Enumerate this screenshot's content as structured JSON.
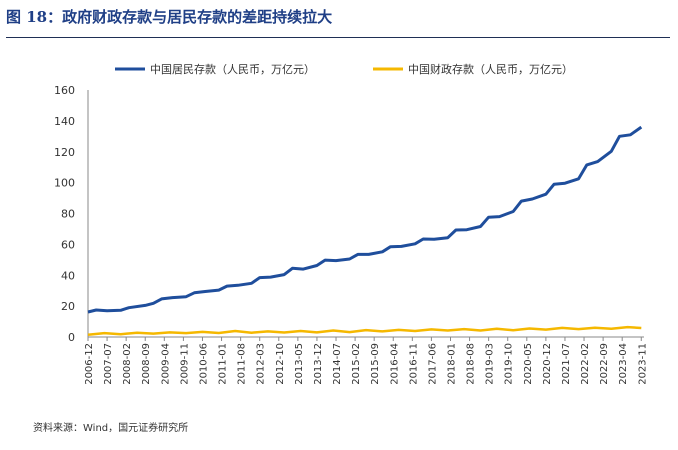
{
  "figure_title": "图 18：政府财政存款与居民存款的差距持续拉大",
  "source": "资料来源：Wind，国元证券研究所",
  "colors": {
    "title": "#1f3f86",
    "household": "#1f4e9c",
    "fiscal": "#f5b800"
  },
  "chart_data": {
    "type": "line",
    "title": "图 18：政府财政存款与居民存款的差距持续拉大",
    "xlabel": "",
    "ylabel": "",
    "ylim": [
      0,
      160
    ],
    "yticks": [
      0,
      20,
      40,
      60,
      80,
      100,
      120,
      140,
      160
    ],
    "grid": false,
    "legend_position": "top",
    "x_tick_labels": [
      "2006-12",
      "2007-07",
      "2008-02",
      "2008-09",
      "2009-04",
      "2009-11",
      "2010-06",
      "2011-01",
      "2011-08",
      "2012-03",
      "2012-10",
      "2013-05",
      "2013-12",
      "2014-07",
      "2015-02",
      "2015-09",
      "2016-04",
      "2016-11",
      "2017-06",
      "2018-01",
      "2018-08",
      "2019-03",
      "2019-10",
      "2020-05",
      "2020-12",
      "2021-07",
      "2022-02",
      "2022-09",
      "2023-04",
      "2023-11"
    ],
    "x_range": [
      "2006-12",
      "2023-12"
    ],
    "series": [
      {
        "name": "中国居民存款（人民币，万亿元）",
        "color": "#1f4e9c",
        "points": [
          [
            "2006-12",
            16.2
          ],
          [
            "2007-03",
            17.5
          ],
          [
            "2007-07",
            17.0
          ],
          [
            "2007-12",
            17.3
          ],
          [
            "2008-03",
            19.0
          ],
          [
            "2008-09",
            20.5
          ],
          [
            "2008-12",
            21.8
          ],
          [
            "2009-03",
            24.7
          ],
          [
            "2009-07",
            25.5
          ],
          [
            "2009-12",
            26.1
          ],
          [
            "2010-03",
            28.6
          ],
          [
            "2010-07",
            29.5
          ],
          [
            "2010-12",
            30.4
          ],
          [
            "2011-03",
            33.0
          ],
          [
            "2011-07",
            33.5
          ],
          [
            "2011-12",
            34.8
          ],
          [
            "2012-03",
            38.5
          ],
          [
            "2012-07",
            38.8
          ],
          [
            "2012-12",
            40.4
          ],
          [
            "2013-03",
            44.5
          ],
          [
            "2013-07",
            44.0
          ],
          [
            "2013-12",
            46.3
          ],
          [
            "2014-03",
            49.8
          ],
          [
            "2014-07",
            49.5
          ],
          [
            "2014-12",
            50.5
          ],
          [
            "2015-03",
            53.5
          ],
          [
            "2015-07",
            53.5
          ],
          [
            "2015-12",
            55.2
          ],
          [
            "2016-03",
            58.5
          ],
          [
            "2016-07",
            58.7
          ],
          [
            "2016-12",
            60.4
          ],
          [
            "2017-03",
            63.5
          ],
          [
            "2017-07",
            63.3
          ],
          [
            "2017-12",
            64.3
          ],
          [
            "2018-03",
            69.3
          ],
          [
            "2018-07",
            69.5
          ],
          [
            "2018-12",
            71.6
          ],
          [
            "2019-03",
            77.6
          ],
          [
            "2019-07",
            78.0
          ],
          [
            "2019-12",
            81.3
          ],
          [
            "2020-03",
            88.0
          ],
          [
            "2020-07",
            89.4
          ],
          [
            "2020-12",
            92.5
          ],
          [
            "2021-03",
            99.0
          ],
          [
            "2021-07",
            99.6
          ],
          [
            "2021-12",
            102.5
          ],
          [
            "2022-03",
            111.5
          ],
          [
            "2022-07",
            113.6
          ],
          [
            "2022-12",
            120.3
          ],
          [
            "2023-03",
            130.0
          ],
          [
            "2023-07",
            131.0
          ],
          [
            "2023-11",
            136.0
          ]
        ]
      },
      {
        "name": "中国财政存款（人民币，万亿元）",
        "color": "#f5b800",
        "points": [
          [
            "2006-12",
            1.4
          ],
          [
            "2007-06",
            2.5
          ],
          [
            "2007-12",
            1.8
          ],
          [
            "2008-06",
            2.8
          ],
          [
            "2008-12",
            2.2
          ],
          [
            "2009-06",
            3.0
          ],
          [
            "2009-12",
            2.5
          ],
          [
            "2010-06",
            3.3
          ],
          [
            "2010-12",
            2.6
          ],
          [
            "2011-06",
            3.9
          ],
          [
            "2011-12",
            2.8
          ],
          [
            "2012-06",
            3.6
          ],
          [
            "2012-12",
            2.9
          ],
          [
            "2013-06",
            3.9
          ],
          [
            "2013-12",
            3.0
          ],
          [
            "2014-06",
            4.2
          ],
          [
            "2014-12",
            3.2
          ],
          [
            "2015-06",
            4.5
          ],
          [
            "2015-12",
            3.6
          ],
          [
            "2016-06",
            4.6
          ],
          [
            "2016-12",
            3.9
          ],
          [
            "2017-06",
            4.9
          ],
          [
            "2017-12",
            4.2
          ],
          [
            "2018-06",
            5.1
          ],
          [
            "2018-12",
            4.2
          ],
          [
            "2019-06",
            5.3
          ],
          [
            "2019-12",
            4.4
          ],
          [
            "2020-06",
            5.5
          ],
          [
            "2020-12",
            4.8
          ],
          [
            "2021-06",
            5.9
          ],
          [
            "2021-12",
            5.1
          ],
          [
            "2022-06",
            6.0
          ],
          [
            "2022-12",
            5.3
          ],
          [
            "2023-06",
            6.4
          ],
          [
            "2023-11",
            5.8
          ]
        ]
      }
    ]
  }
}
